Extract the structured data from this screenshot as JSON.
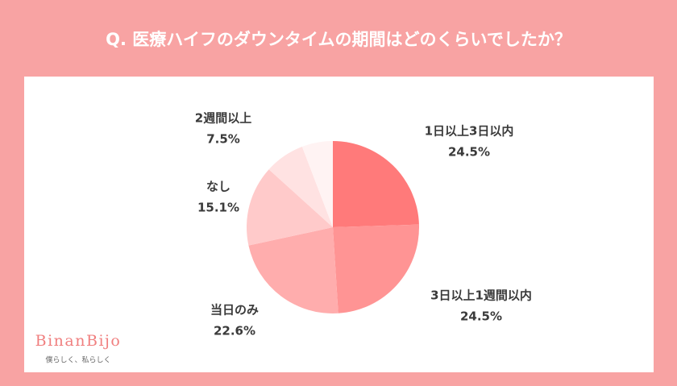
{
  "chart_data": {
    "type": "pie",
    "title": "Q. 医療ハイフのダウンタイムの期間はどのくらいでしたか？",
    "categories": [
      "1日以上3日以内",
      "3日以上1週間以内",
      "当日のみ",
      "なし",
      "2週間以上",
      null
    ],
    "values": [
      24.5,
      24.5,
      22.6,
      15.1,
      7.5,
      5.8
    ],
    "value_labels": [
      "24.5%",
      "24.5%",
      "22.6%",
      "15.1%",
      "7.5%",
      null
    ],
    "colors": [
      "#ff7a7a",
      "#ff9494",
      "#ffadad",
      "#ffcaca",
      "#ffe2e2",
      "#fff3f3"
    ]
  },
  "logo": {
    "name": "BinanBijo",
    "tagline": "僕らしく、私らしく"
  }
}
